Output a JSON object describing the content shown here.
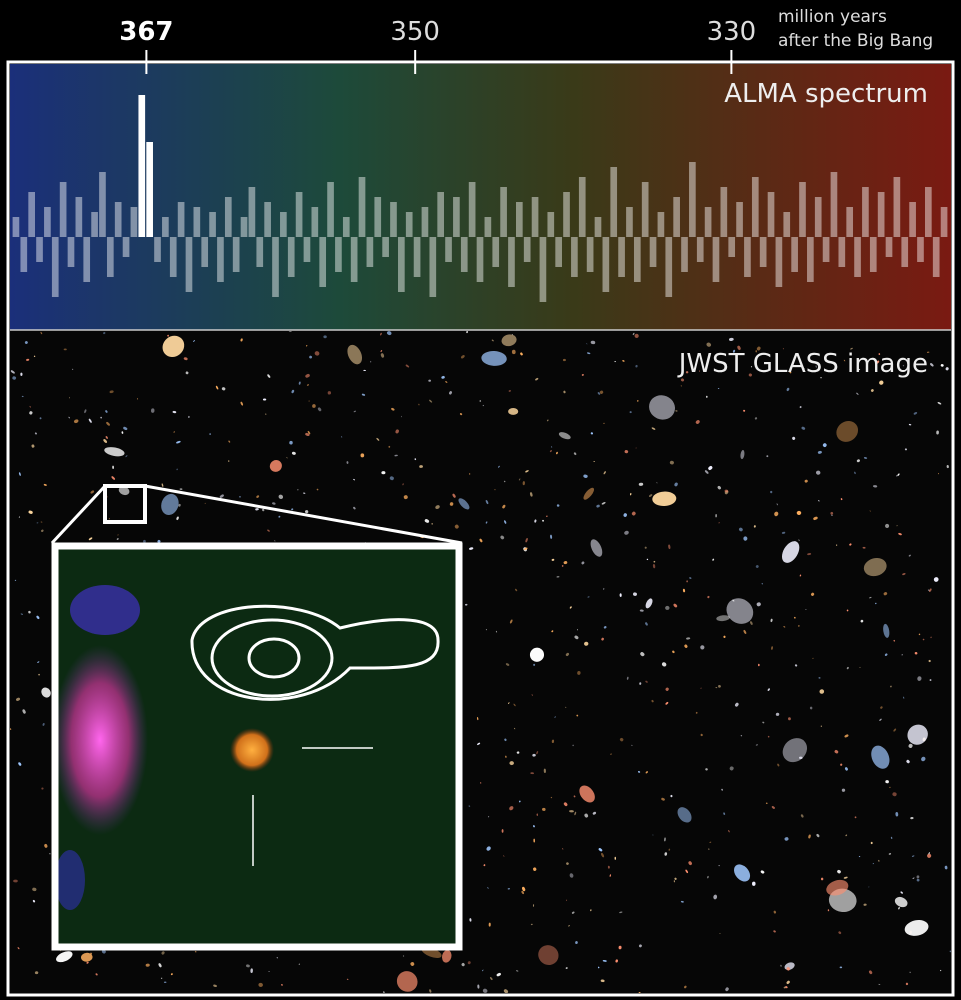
{
  "chart_data": {
    "type": "bar",
    "title": "ALMA spectrum",
    "subtitle": "JWST GLASS image",
    "x_label_lines": [
      "million years",
      "after the Big Bang"
    ],
    "xlim": [
      375.5,
      316.3
    ],
    "xticks": [
      367,
      350,
      330
    ],
    "color": "#ffffff",
    "values": [
      20,
      -35,
      45,
      -25,
      30,
      -60,
      55,
      -30,
      40,
      -45,
      25,
      65,
      -40,
      35,
      -20,
      30,
      142,
      95,
      -25,
      20,
      -40,
      35,
      -55,
      30,
      -30,
      25,
      -45,
      40,
      -35,
      20,
      50,
      -30,
      35,
      -60,
      25,
      -40,
      45,
      -25,
      30,
      -50,
      55,
      -35,
      20,
      -45,
      60,
      -30,
      40,
      -20,
      35,
      -55,
      25,
      -40,
      30,
      -60,
      45,
      -25,
      40,
      -35,
      55,
      -45,
      20,
      -30,
      50,
      -50,
      35,
      -25,
      40,
      -65,
      25,
      -30,
      45,
      -40,
      60,
      -35,
      20,
      -55,
      70,
      -40,
      30,
      -45,
      55,
      -30,
      25,
      -60,
      40,
      -35,
      75,
      -25,
      30,
      -45,
      50,
      -20,
      35,
      -40,
      60,
      -30,
      45,
      -50,
      25,
      -35,
      55,
      -45,
      40,
      -25,
      65,
      -30,
      30,
      -40,
      50,
      -35,
      45,
      -20,
      60,
      -30,
      35,
      -25,
      50,
      -40,
      30
    ]
  }
}
